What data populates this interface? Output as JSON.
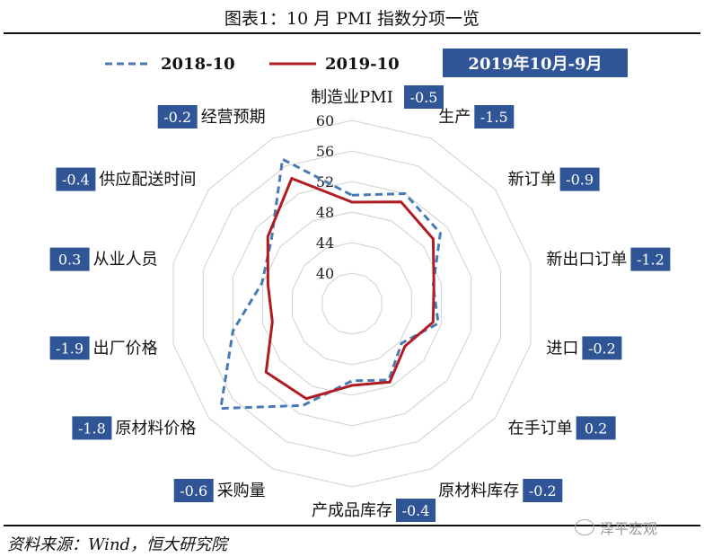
{
  "header": {
    "title": "图表1：10 月 PMI 指数分项一览"
  },
  "legend": {
    "series_a": "2018-10",
    "series_b": "2019-10",
    "period_label": "2019年10月-9月"
  },
  "footer": {
    "source": "资料来源：Wind，恒大研究院",
    "watermark": "泽平宏观"
  },
  "colors": {
    "series_a": "#4a7ab5",
    "series_b": "#b01c22",
    "badge": "#2f5597",
    "grid": "#d0d0d0"
  },
  "chart_data": {
    "type": "radar",
    "title": "图表1：10 月 PMI 指数分项一览",
    "rlim": [
      36,
      60
    ],
    "ticks": [
      40,
      44,
      48,
      52,
      56,
      60
    ],
    "grid": true,
    "categories": [
      "制造业PMI",
      "生产",
      "新订单",
      "新出口订单",
      "进口",
      "在手订单",
      "原材料库存",
      "产成品库存",
      "采购量",
      "原材料价格",
      "出厂价格",
      "从业人员",
      "供应配送时间",
      "经营预期"
    ],
    "series": [
      {
        "name": "2018-10",
        "style": "dashed",
        "values": [
          50.2,
          52.0,
          50.8,
          46.9,
          47.6,
          44.3,
          47.1,
          46.1,
          50.8,
          58.0,
          52.0,
          48.1,
          49.5,
          57.0
        ]
      },
      {
        "name": "2019-10",
        "style": "solid",
        "values": [
          49.3,
          50.8,
          49.6,
          47.0,
          46.9,
          44.9,
          47.4,
          46.7,
          49.8,
          50.4,
          46.7,
          47.3,
          50.1,
          54.2
        ]
      }
    ],
    "differences": [
      "-0.5",
      "-1.5",
      "-0.9",
      "-1.2",
      "-0.2",
      "0.2",
      "-0.2",
      "-0.4",
      "-0.6",
      "-1.8",
      "-1.9",
      "0.3",
      "-0.4",
      "-0.2"
    ]
  }
}
